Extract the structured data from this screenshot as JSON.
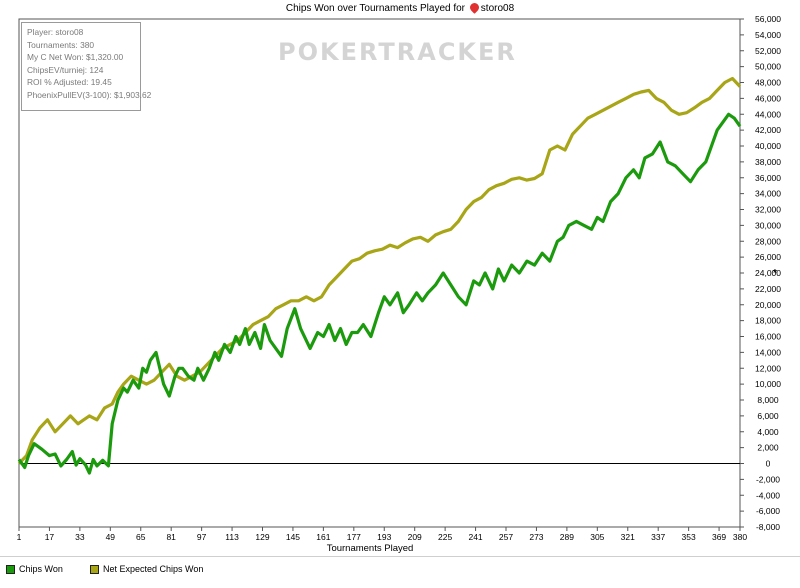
{
  "header": {
    "title": "Chips Won over Tournaments Played for",
    "player_name": "storo08"
  },
  "watermark": "POKERTRACKER",
  "stats": {
    "player": "Player: storo08",
    "tournaments": "Tournaments: 380",
    "net_won": "My C Net Won: $1,320.00",
    "chips_ev": "ChipsEV/turniej: 124",
    "roi": "ROI % Adjusted: 19.45",
    "phoenix": "PhoenixPullEV(3-100): $1,903.62"
  },
  "colors": {
    "chips_won": "#1c9a0e",
    "net_expected": "#a8a516",
    "background": "#ffffff",
    "zero_line": "#000000"
  },
  "legend": {
    "chips_won": "Chips Won",
    "net_expected": "Net Expected Chips Won"
  },
  "chart_data": {
    "type": "line",
    "title": "Chips Won over Tournaments Played for storo08",
    "xlabel": "Tournaments Played",
    "ylabel": "",
    "xlim": [
      1,
      380
    ],
    "ylim": [
      -8000,
      56000
    ],
    "x_ticks": [
      1,
      17,
      33,
      49,
      65,
      81,
      97,
      113,
      129,
      145,
      161,
      177,
      193,
      209,
      225,
      241,
      257,
      273,
      289,
      305,
      321,
      337,
      353,
      369,
      380
    ],
    "y_ticks": [
      -8000,
      -6000,
      -4000,
      -2000,
      0,
      2000,
      4000,
      6000,
      8000,
      10000,
      12000,
      14000,
      16000,
      18000,
      20000,
      22000,
      24000,
      26000,
      28000,
      30000,
      32000,
      34000,
      36000,
      38000,
      40000,
      42000,
      44000,
      46000,
      48000,
      50000,
      52000,
      54000,
      56000
    ],
    "y_tick_labels": [
      "-8,000",
      "-6,000",
      "-4,000",
      "-2,000",
      "0",
      "2,000",
      "4,000",
      "6,000",
      "8,000",
      "10,000",
      "12,000",
      "14,000",
      "16,000",
      "18,000",
      "20,000",
      "22,000",
      "24,000",
      "26,000",
      "28,000",
      "30,000",
      "32,000",
      "34,000",
      "36,000",
      "38,000",
      "40,000",
      "42,000",
      "44,000",
      "46,000",
      "48,000",
      "50,000",
      "52,000",
      "54,000",
      "56,000"
    ],
    "series": [
      {
        "name": "Chips Won",
        "x": [
          1,
          4,
          6,
          9,
          13,
          17,
          20,
          23,
          26,
          29,
          31,
          33,
          36,
          38,
          40,
          42,
          45,
          48,
          50,
          53,
          56,
          58,
          61,
          64,
          66,
          68,
          70,
          73,
          75,
          77,
          80,
          83,
          85,
          87,
          90,
          93,
          95,
          98,
          101,
          104,
          106,
          109,
          112,
          115,
          117,
          120,
          122,
          125,
          128,
          130,
          133,
          136,
          139,
          142,
          146,
          149,
          154,
          158,
          161,
          164,
          167,
          170,
          173,
          176,
          179,
          182,
          186,
          190,
          193,
          196,
          200,
          203,
          206,
          210,
          213,
          216,
          220,
          224,
          228,
          232,
          236,
          240,
          243,
          246,
          250,
          253,
          256,
          260,
          264,
          268,
          272,
          276,
          280,
          284,
          287,
          290,
          294,
          298,
          302,
          305,
          308,
          312,
          316,
          320,
          324,
          327,
          330,
          334,
          338,
          342,
          346,
          350,
          354,
          358,
          362,
          365,
          368,
          371,
          374,
          377,
          380
        ],
        "y": [
          500,
          -500,
          1000,
          2500,
          1800,
          1000,
          1200,
          -300,
          500,
          1500,
          -200,
          600,
          -200,
          -1200,
          500,
          -300,
          400,
          -300,
          5000,
          8000,
          9500,
          9000,
          10500,
          9500,
          12000,
          11500,
          13000,
          14000,
          12000,
          10000,
          8500,
          11000,
          12000,
          12000,
          11000,
          10500,
          12000,
          10500,
          12000,
          14000,
          13000,
          15000,
          14000,
          16000,
          15000,
          17000,
          15000,
          16500,
          14500,
          17500,
          15500,
          14500,
          13500,
          17000,
          19500,
          17000,
          14500,
          16500,
          16000,
          17500,
          15500,
          17000,
          15000,
          16500,
          16500,
          17500,
          16000,
          19000,
          21000,
          20000,
          21500,
          19000,
          20000,
          21500,
          20500,
          21500,
          22500,
          24000,
          22500,
          21000,
          20000,
          23000,
          22500,
          24000,
          22000,
          24500,
          23000,
          25000,
          24000,
          25500,
          25000,
          26500,
          25500,
          28000,
          28500,
          30000,
          30500,
          30000,
          29500,
          31000,
          30500,
          33000,
          34000,
          36000,
          37000,
          36000,
          38500,
          39000,
          40500,
          38000,
          37500,
          36500,
          35500,
          37000,
          38000,
          40000,
          42000,
          43000,
          44000,
          43500,
          42500
        ],
        "color": "#1c9a0e"
      },
      {
        "name": "Net Expected Chips Won",
        "x": [
          1,
          5,
          8,
          12,
          16,
          20,
          24,
          28,
          32,
          35,
          38,
          42,
          46,
          50,
          53,
          56,
          60,
          64,
          68,
          72,
          76,
          80,
          84,
          88,
          92,
          96,
          100,
          104,
          108,
          112,
          116,
          120,
          124,
          128,
          132,
          136,
          140,
          144,
          148,
          152,
          156,
          160,
          164,
          168,
          172,
          176,
          180,
          184,
          188,
          192,
          196,
          200,
          204,
          208,
          212,
          216,
          220,
          224,
          228,
          232,
          236,
          240,
          244,
          248,
          252,
          256,
          260,
          264,
          268,
          272,
          276,
          280,
          284,
          288,
          292,
          296,
          300,
          304,
          308,
          312,
          316,
          320,
          324,
          328,
          332,
          336,
          340,
          344,
          348,
          352,
          356,
          360,
          364,
          368,
          372,
          376,
          380
        ],
        "y": [
          0,
          1000,
          3000,
          4500,
          5500,
          4000,
          5000,
          6000,
          5000,
          5500,
          6000,
          5500,
          7000,
          7500,
          9000,
          10000,
          11000,
          10500,
          10000,
          10500,
          11500,
          12500,
          11000,
          10500,
          11000,
          11500,
          12500,
          13500,
          14500,
          15000,
          15500,
          16500,
          17500,
          18000,
          18500,
          19500,
          20000,
          20500,
          20500,
          21000,
          20500,
          21000,
          22500,
          23500,
          24500,
          25500,
          25800,
          26500,
          26800,
          27000,
          27500,
          27200,
          27800,
          28300,
          28500,
          28000,
          28800,
          29200,
          29500,
          30500,
          32000,
          33000,
          33500,
          34500,
          35000,
          35300,
          35800,
          36000,
          35700,
          35900,
          36500,
          39500,
          40000,
          39500,
          41500,
          42500,
          43500,
          44000,
          44500,
          45000,
          45500,
          46000,
          46500,
          46800,
          47000,
          46000,
          45500,
          44500,
          44000,
          44200,
          44800,
          45500,
          46000,
          47000,
          48000,
          48500,
          47500
        ],
        "color": "#a8a516"
      }
    ],
    "grid": false,
    "legend_position": "bottom-left"
  }
}
